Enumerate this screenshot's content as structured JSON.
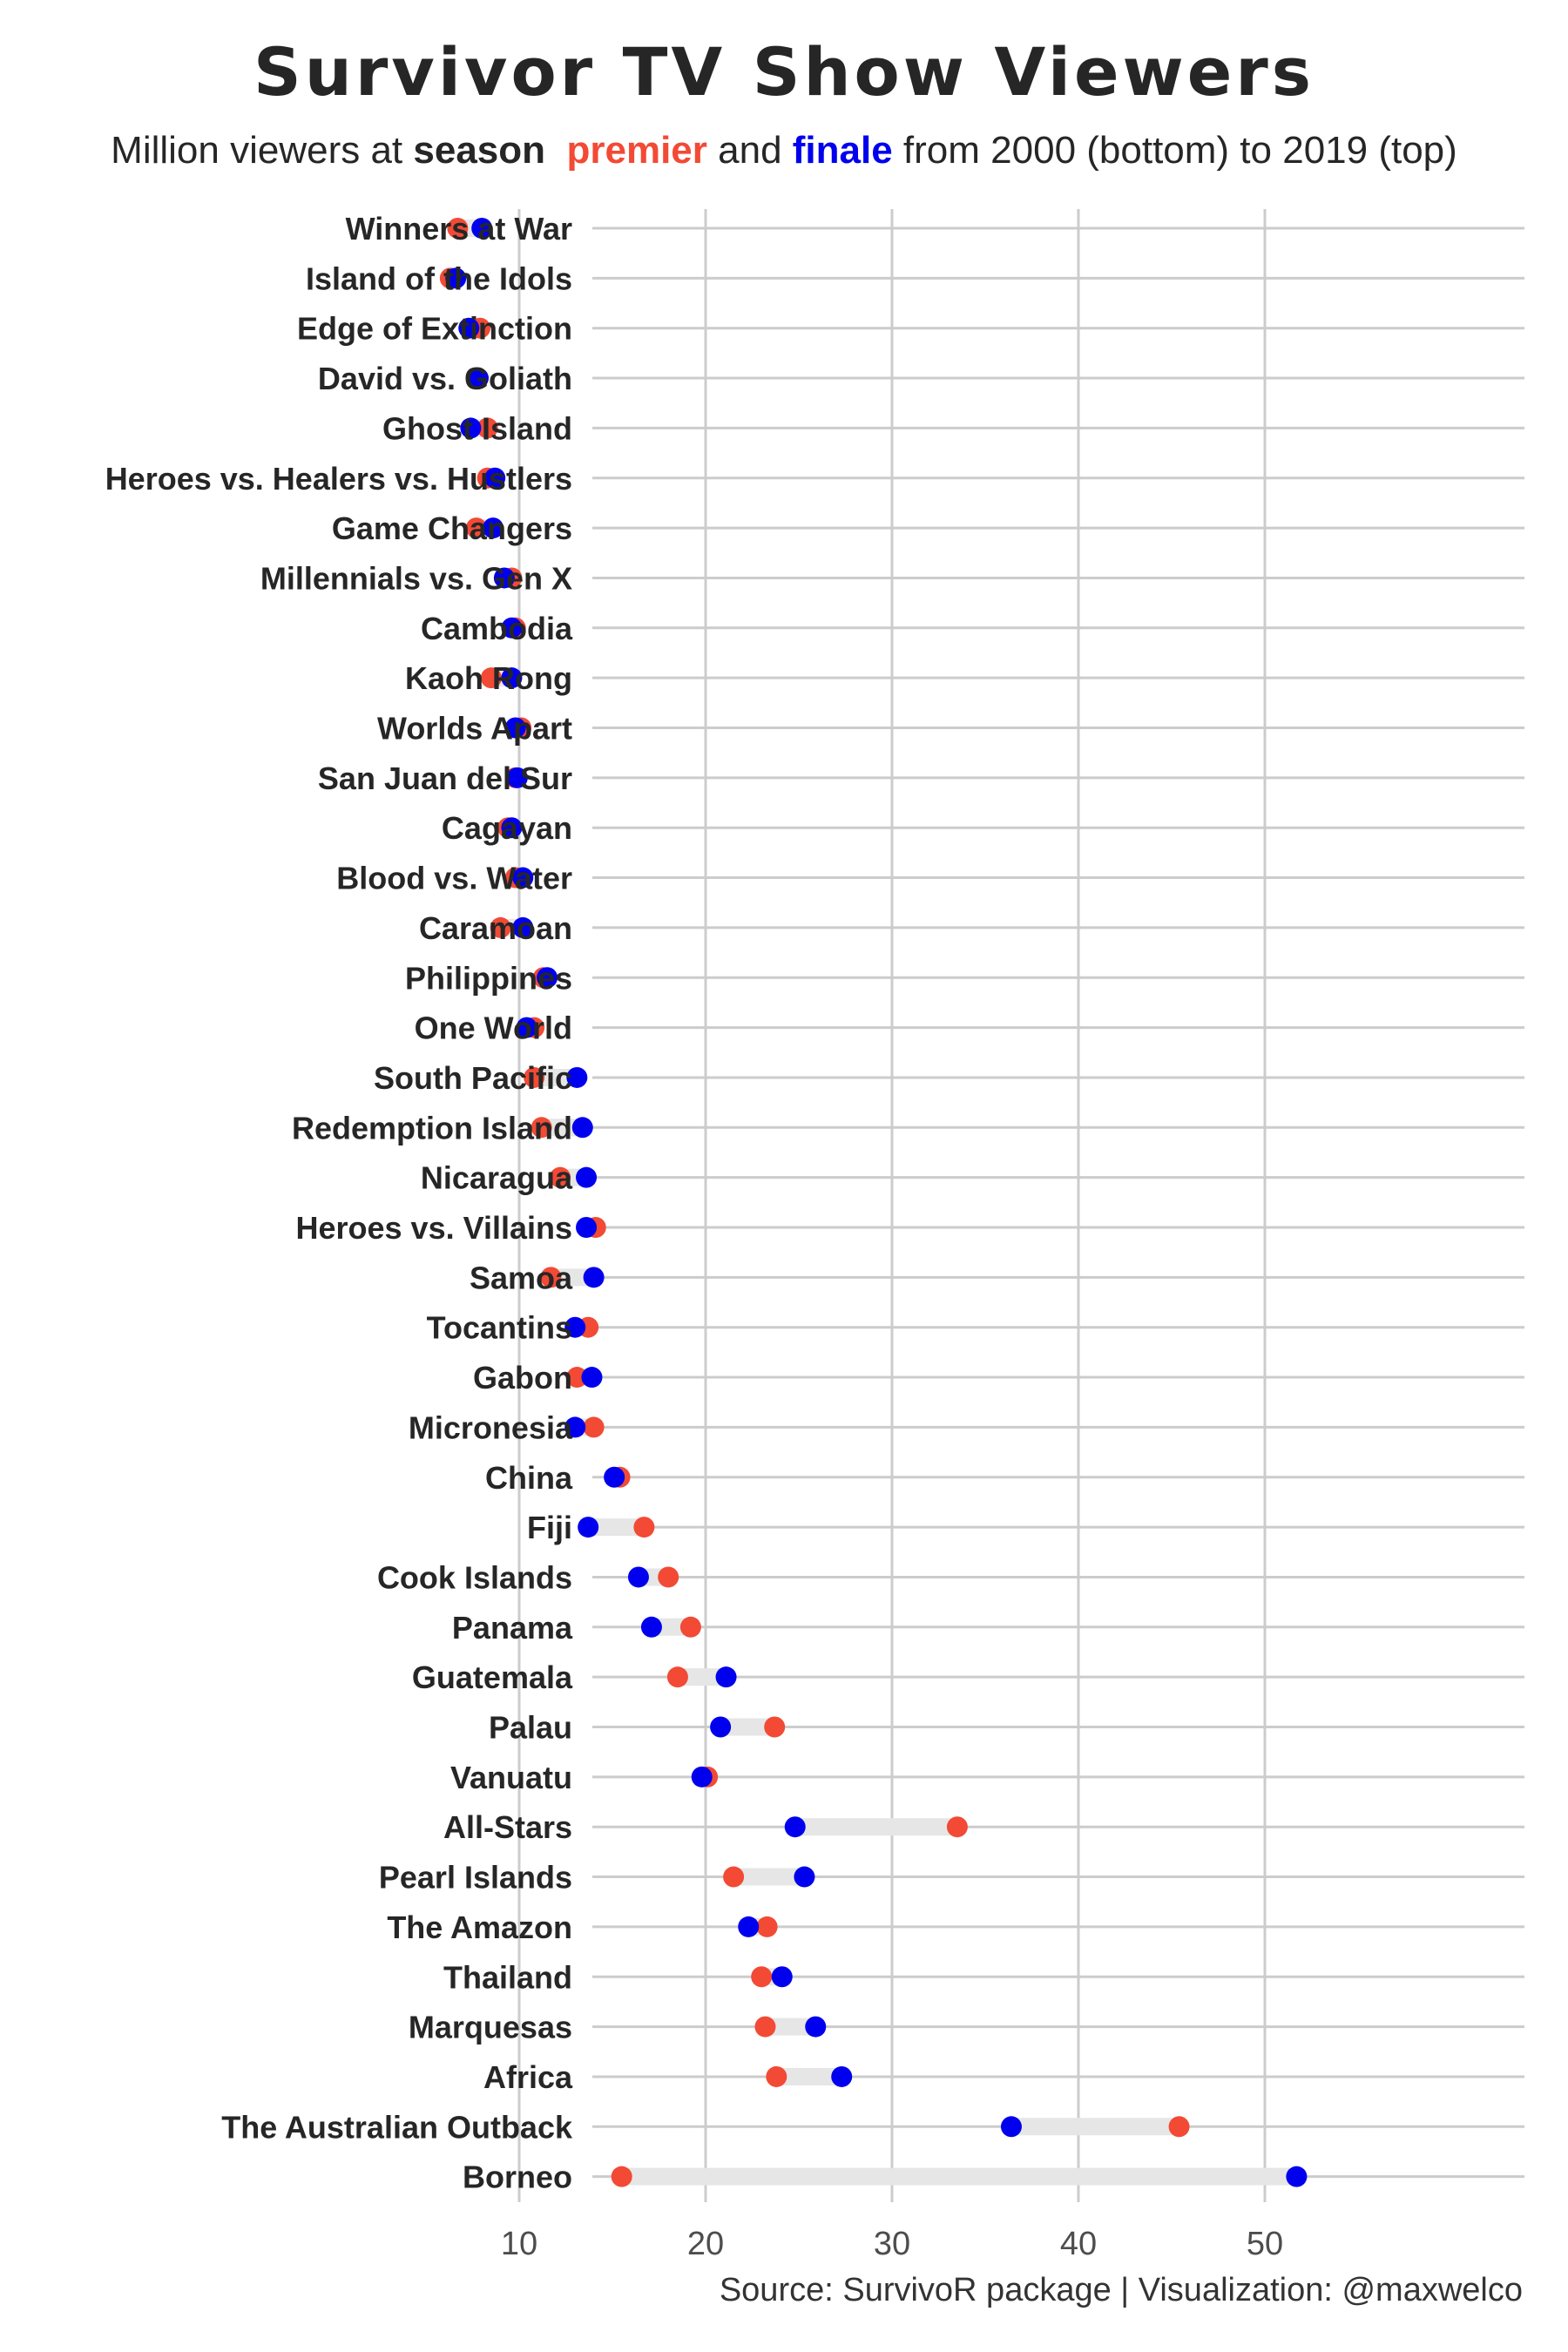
{
  "title": "Survivor TV Show Viewers",
  "subtitle": {
    "part1": "Million viewers at ",
    "season": "season",
    "premier": "premier",
    "and": " and ",
    "finale": "finale",
    "part2": " from 2000 (bottom) to 2019 (top)"
  },
  "source": "Source: SurvivoR package | Visualization: @maxwelco",
  "colors": {
    "premier": "#f24a35",
    "finale": "#0000ee",
    "segment": "#e6e6e6",
    "grid": "#cccccc",
    "text": "#262626"
  },
  "chart_data": {
    "type": "dumbbell",
    "xlim": [
      4,
      55
    ],
    "x_ticks": [
      10,
      20,
      30,
      40,
      50
    ],
    "legend": "encoded in subtitle colors",
    "series": [
      {
        "name": "premier",
        "color": "#f24a35"
      },
      {
        "name": "finale",
        "color": "#0000ee"
      }
    ],
    "seasons": [
      {
        "name": "Winners at War",
        "premier": 6.7,
        "finale": 8.0
      },
      {
        "name": "Island of the Idols",
        "premier": 6.3,
        "finale": 6.6
      },
      {
        "name": "Edge of Extinction",
        "premier": 7.9,
        "finale": 7.3
      },
      {
        "name": "David vs. Goliath",
        "premier": 7.8,
        "finale": 7.8
      },
      {
        "name": "Ghost Island",
        "premier": 8.3,
        "finale": 7.4
      },
      {
        "name": "Heroes vs. Healers vs. Hustlers",
        "premier": 8.3,
        "finale": 8.7
      },
      {
        "name": "Game Changers",
        "premier": 7.7,
        "finale": 8.6
      },
      {
        "name": "Millennials vs. Gen X",
        "premier": 9.6,
        "finale": 9.2
      },
      {
        "name": "Cambodia",
        "premier": 9.8,
        "finale": 9.6
      },
      {
        "name": "Kaoh Rong",
        "premier": 8.5,
        "finale": 9.6
      },
      {
        "name": "Worlds Apart",
        "premier": 10.1,
        "finale": 9.8
      },
      {
        "name": "San Juan del Sur",
        "premier": 9.8,
        "finale": 9.9
      },
      {
        "name": "Cagayan",
        "premier": 9.4,
        "finale": 9.6
      },
      {
        "name": "Blood vs. Water",
        "premier": 9.8,
        "finale": 10.2
      },
      {
        "name": "Caramoan",
        "premier": 9.0,
        "finale": 10.2
      },
      {
        "name": "Philippines",
        "premier": 11.3,
        "finale": 11.5
      },
      {
        "name": "One World",
        "premier": 10.8,
        "finale": 10.4
      },
      {
        "name": "South Pacific",
        "premier": 10.8,
        "finale": 13.1
      },
      {
        "name": "Redemption Island",
        "premier": 11.2,
        "finale": 13.4
      },
      {
        "name": "Nicaragua",
        "premier": 12.2,
        "finale": 13.6
      },
      {
        "name": "Heroes vs. Villains",
        "premier": 14.1,
        "finale": 13.6
      },
      {
        "name": "Samoa",
        "premier": 11.7,
        "finale": 14.0
      },
      {
        "name": "Tocantins",
        "premier": 13.7,
        "finale": 13.0
      },
      {
        "name": "Gabon",
        "premier": 13.1,
        "finale": 13.9
      },
      {
        "name": "Micronesia",
        "premier": 14.0,
        "finale": 13.0
      },
      {
        "name": "China",
        "premier": 15.4,
        "finale": 15.1
      },
      {
        "name": "Fiji",
        "premier": 16.7,
        "finale": 13.7
      },
      {
        "name": "Cook Islands",
        "premier": 18.0,
        "finale": 16.4
      },
      {
        "name": "Panama",
        "premier": 19.2,
        "finale": 17.1
      },
      {
        "name": "Guatemala",
        "premier": 18.5,
        "finale": 21.1
      },
      {
        "name": "Palau",
        "premier": 23.7,
        "finale": 20.8
      },
      {
        "name": "Vanuatu",
        "premier": 20.1,
        "finale": 19.8
      },
      {
        "name": "All-Stars",
        "premier": 33.5,
        "finale": 24.8
      },
      {
        "name": "Pearl Islands",
        "premier": 21.5,
        "finale": 25.3
      },
      {
        "name": "The Amazon",
        "premier": 23.3,
        "finale": 22.3
      },
      {
        "name": "Thailand",
        "premier": 23.0,
        "finale": 24.1
      },
      {
        "name": "Marquesas",
        "premier": 23.2,
        "finale": 25.9
      },
      {
        "name": "Africa",
        "premier": 23.8,
        "finale": 27.3
      },
      {
        "name": "The Australian Outback",
        "premier": 45.4,
        "finale": 36.4
      },
      {
        "name": "Borneo",
        "premier": 15.5,
        "finale": 51.7
      }
    ]
  }
}
